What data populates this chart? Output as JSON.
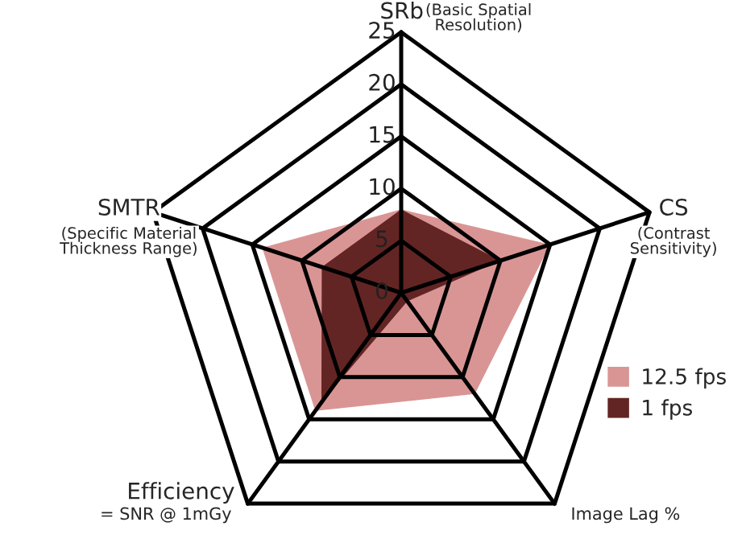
{
  "chart_data": {
    "type": "radar",
    "categories": [
      "SRb\n(Basic Spatial\nResolution)",
      "CS\n(Contrast\nSensitivity)",
      "Image Lag %",
      "Efficiency\n= SNR @ 1mGy",
      "SMTR\n(Specific Material\nThickness Range)"
    ],
    "series": [
      {
        "name": "12.5 fps",
        "color": "#d99594",
        "values": [
          8,
          15,
          12,
          14,
          14
        ]
      },
      {
        "name": "1 fps",
        "color": "#632523",
        "values": [
          8,
          10,
          1,
          13,
          8
        ]
      }
    ],
    "ylim": [
      0,
      25
    ],
    "yticks": [
      0,
      5,
      10,
      15,
      20,
      25
    ],
    "grid": true,
    "legend": "right"
  }
}
